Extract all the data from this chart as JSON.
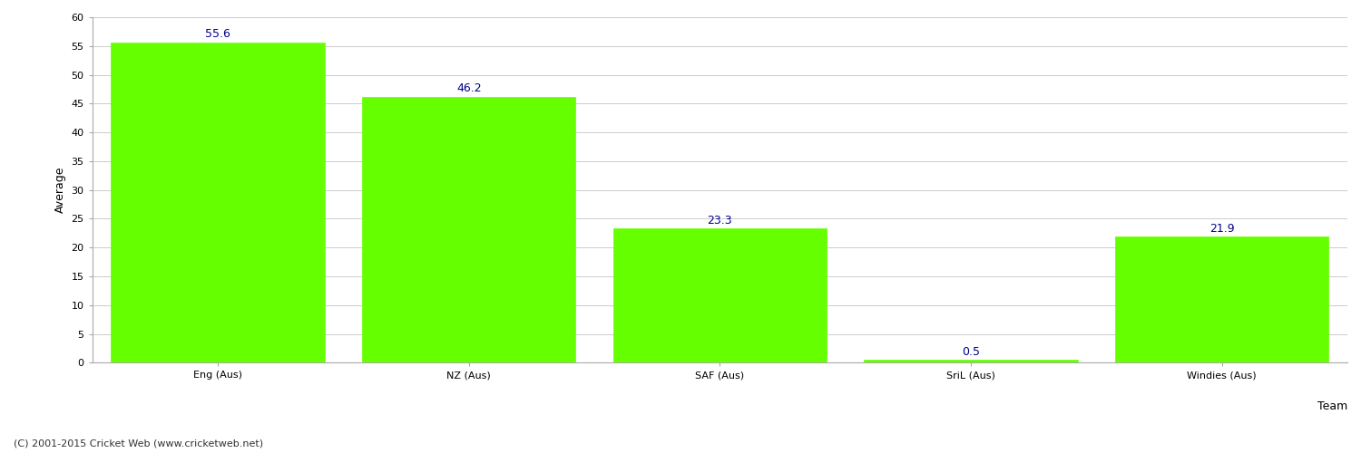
{
  "categories": [
    "Eng (Aus)",
    "NZ (Aus)",
    "SAF (Aus)",
    "SriL (Aus)",
    "Windies (Aus)"
  ],
  "values": [
    55.6,
    46.2,
    23.3,
    0.5,
    21.9
  ],
  "bar_color": "#66ff00",
  "bar_edgecolor": "#66ff00",
  "value_color": "#00008B",
  "value_fontsize": 9,
  "xlabel": "Team",
  "ylabel": "Average",
  "ylim": [
    0,
    60
  ],
  "yticks": [
    0,
    5,
    10,
    15,
    20,
    25,
    30,
    35,
    40,
    45,
    50,
    55,
    60
  ],
  "grid_color": "#cccccc",
  "bg_color": "#ffffff",
  "ylabel_fontsize": 9,
  "tick_fontsize": 8,
  "footer": "(C) 2001-2015 Cricket Web (www.cricketweb.net)",
  "footer_fontsize": 8,
  "footer_color": "#333333"
}
